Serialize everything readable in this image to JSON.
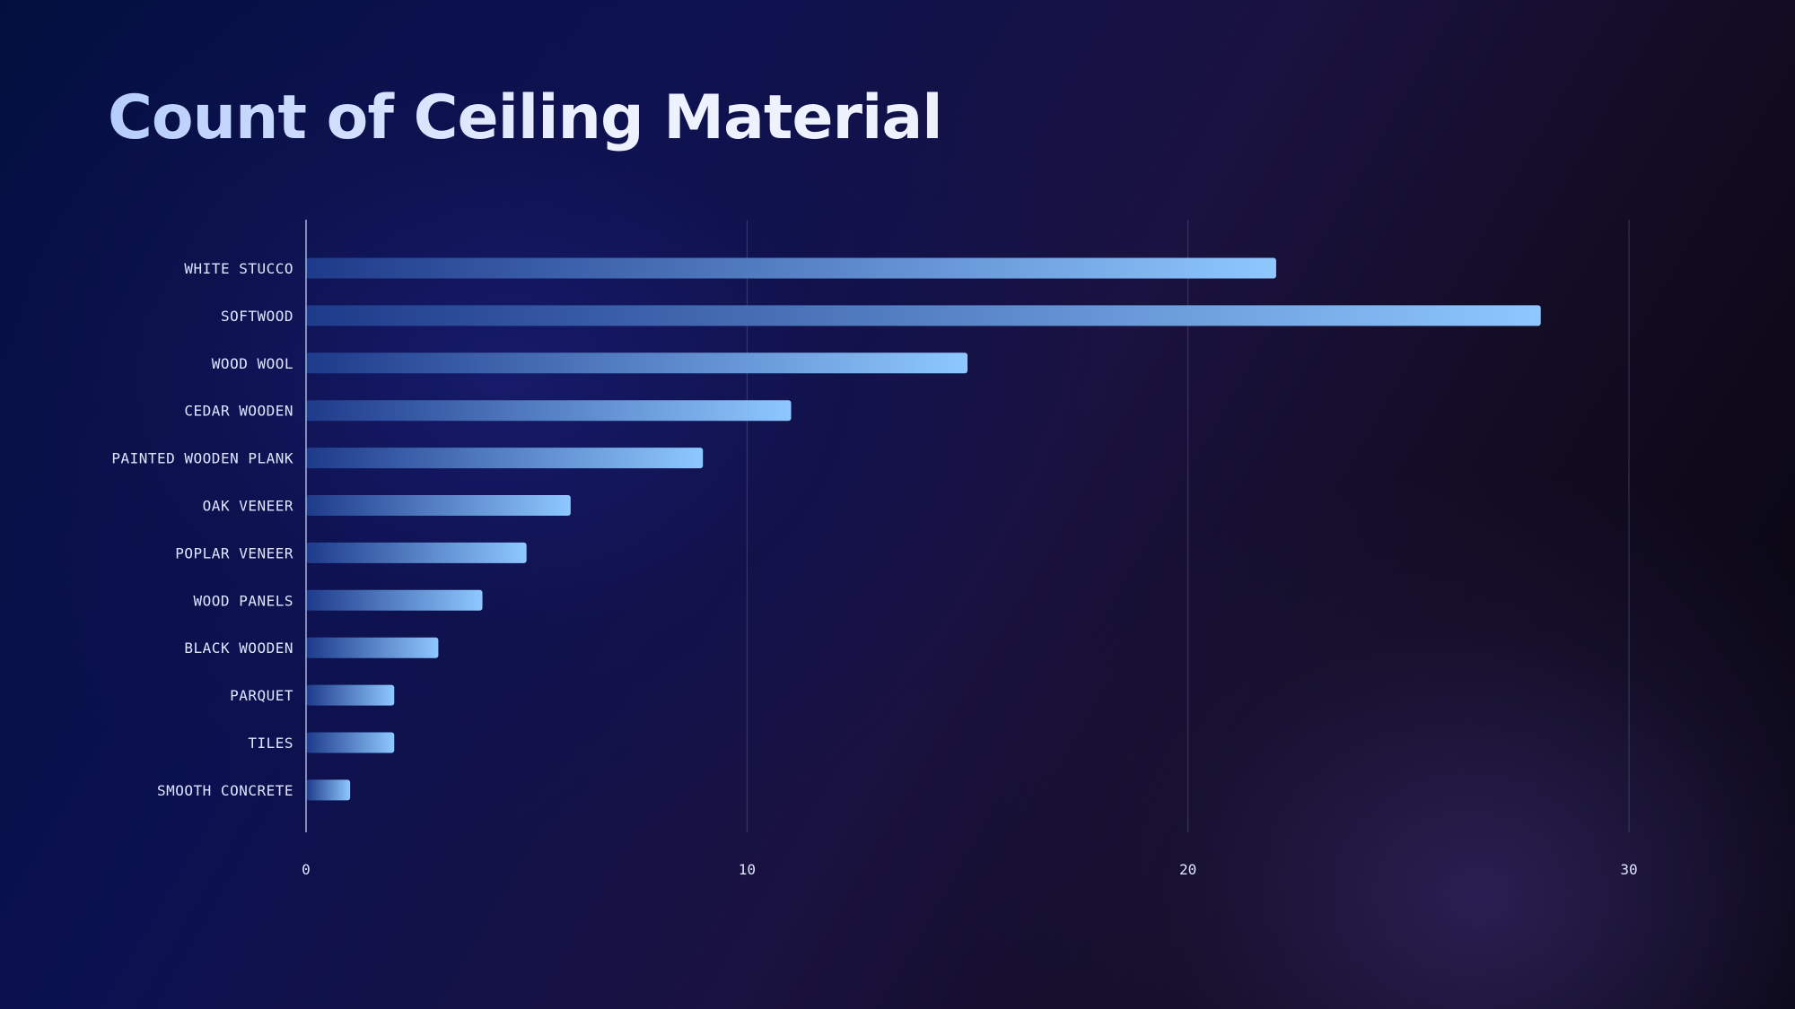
{
  "title": "Count of Ceiling Material",
  "colors": {
    "bar_start": "#1e3a8a",
    "bar_end": "#8ec8ff",
    "axis": "#aab4d8",
    "grid": "#4a4f7a",
    "text": "#dfe6ff"
  },
  "chart_data": {
    "type": "bar",
    "orientation": "horizontal",
    "title": "Count of Ceiling Material",
    "categories": [
      "WHITE STUCCO",
      "SOFTWOOD",
      "WOOD WOOL",
      "CEDAR WOODEN",
      "PAINTED WOODEN PLANK",
      "OAK VENEER",
      "POPLAR VENEER",
      "WOOD PANELS",
      "BLACK WOODEN",
      "PARQUET",
      "TILES",
      "SMOOTH CONCRETE"
    ],
    "values": [
      22,
      28,
      15,
      11,
      9,
      6,
      5,
      4,
      3,
      2,
      2,
      1
    ],
    "xlim": [
      0,
      30
    ],
    "xticks": [
      0,
      10,
      20,
      30
    ],
    "xlabel": "",
    "ylabel": "",
    "grid": true
  }
}
